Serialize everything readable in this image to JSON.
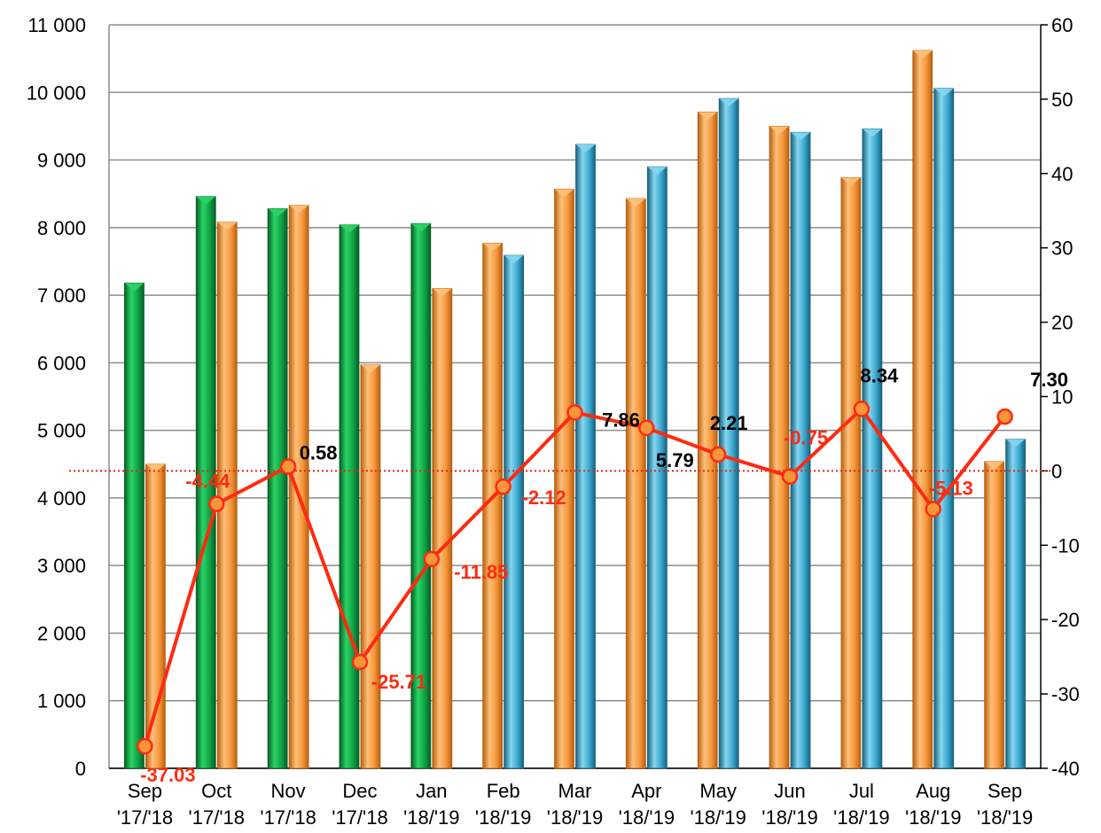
{
  "chart_data": {
    "type": "bar",
    "title": "",
    "categories": [
      {
        "month": "Sep",
        "years": "'17/'18"
      },
      {
        "month": "Oct",
        "years": "'17/'18"
      },
      {
        "month": "Nov",
        "years": "'17/'18"
      },
      {
        "month": "Dec",
        "years": "'17/'18"
      },
      {
        "month": "Jan",
        "years": "'18/'19"
      },
      {
        "month": "Feb",
        "years": "'18/'19"
      },
      {
        "month": "Mar",
        "years": "'18/'19"
      },
      {
        "month": "Apr",
        "years": "'18/'19"
      },
      {
        "month": "May",
        "years": "'18/'19"
      },
      {
        "month": "Jun",
        "years": "'18/'19"
      },
      {
        "month": "Jul",
        "years": "'18/'19"
      },
      {
        "month": "Aug",
        "years": "'18/'19"
      },
      {
        "month": "Sep",
        "years": "'18/'19"
      }
    ],
    "bars": [
      {
        "prev": 7180,
        "curr": 4500,
        "prev_color": "green",
        "curr_color": "orange"
      },
      {
        "prev": 8460,
        "curr": 8080,
        "prev_color": "green",
        "curr_color": "orange"
      },
      {
        "prev": 8280,
        "curr": 8330,
        "prev_color": "green",
        "curr_color": "orange"
      },
      {
        "prev": 8040,
        "curr": 5970,
        "prev_color": "green",
        "curr_color": "orange"
      },
      {
        "prev": 8060,
        "curr": 7100,
        "prev_color": "green",
        "curr_color": "orange"
      },
      {
        "prev": 7770,
        "curr": 7590,
        "prev_color": "orange",
        "curr_color": "blue"
      },
      {
        "prev": 8570,
        "curr": 9230,
        "prev_color": "orange",
        "curr_color": "blue"
      },
      {
        "prev": 8430,
        "curr": 8900,
        "prev_color": "orange",
        "curr_color": "blue"
      },
      {
        "prev": 9710,
        "curr": 9910,
        "prev_color": "orange",
        "curr_color": "blue"
      },
      {
        "prev": 9500,
        "curr": 9410,
        "prev_color": "orange",
        "curr_color": "blue"
      },
      {
        "prev": 8740,
        "curr": 9460,
        "prev_color": "orange",
        "curr_color": "blue"
      },
      {
        "prev": 10620,
        "curr": 10060,
        "prev_color": "orange",
        "curr_color": "blue"
      },
      {
        "prev": 4540,
        "curr": 4870,
        "prev_color": "orange",
        "curr_color": "blue"
      }
    ],
    "line": {
      "values": [
        -37.03,
        -4.44,
        0.58,
        -25.71,
        -11.85,
        -2.12,
        7.86,
        5.79,
        2.21,
        -0.75,
        8.34,
        -5.13,
        7.3
      ],
      "labels": [
        "-37.03",
        "-4.44",
        "0.58",
        "-25.71",
        "-11.85",
        "-2.12",
        "7.86",
        "5.79",
        "2.21",
        "-0.75",
        "8.34",
        "-5.13",
        "7.30"
      ],
      "color": "#ff2a10"
    },
    "y_left": {
      "min": 0,
      "max": 11000,
      "step": 1000,
      "tick_labels": [
        "0",
        "1 000",
        "2 000",
        "3 000",
        "4 000",
        "5 000",
        "6 000",
        "7 000",
        "8 000",
        "9 000",
        "10 000",
        "11 000"
      ]
    },
    "y_right": {
      "min": -40,
      "max": 60,
      "step": 10,
      "tick_labels": [
        "-40",
        "-30",
        "-20",
        "-10",
        "0",
        "10",
        "20",
        "30",
        "40",
        "50",
        "60"
      ]
    },
    "grid": true,
    "zero_reference_line": true,
    "colors": {
      "green": {
        "light": "#2bd466",
        "mid": "#0fa146",
        "dark": "#065f24"
      },
      "orange": {
        "light": "#ffc07a",
        "mid": "#f5963a",
        "dark": "#b8600f"
      },
      "blue": {
        "light": "#86d6ef",
        "mid": "#3aa7cf",
        "dark": "#16627e"
      },
      "grid": "#8c8c8c",
      "negative_label": "#ff2a10",
      "positive_label": "#000000"
    }
  }
}
